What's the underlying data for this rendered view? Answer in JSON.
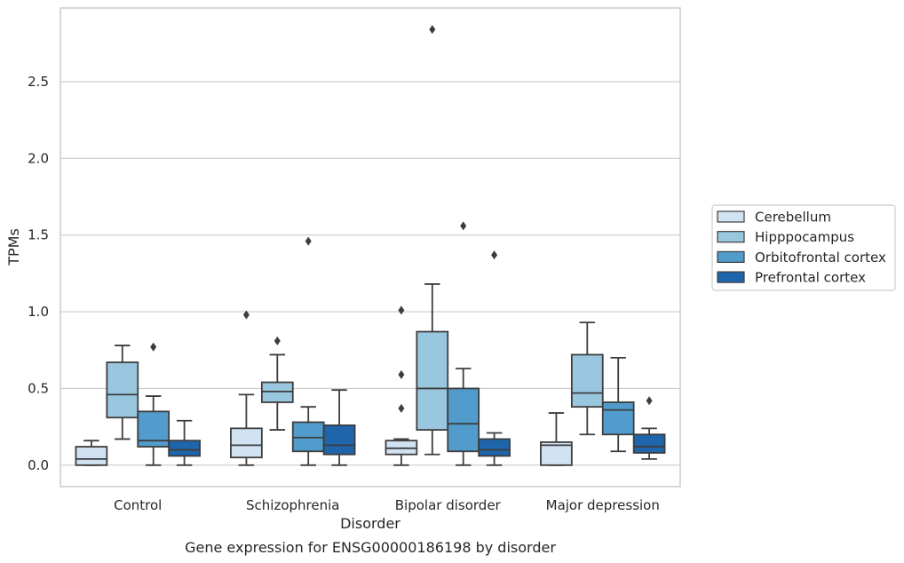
{
  "chart_data": {
    "type": "box",
    "title": "",
    "xlabel": "Disorder",
    "ylabel": "TPMs",
    "caption": "Gene expression for ENSG00000186198 by disorder",
    "ylim": [
      -0.14,
      2.98
    ],
    "yticks": [
      0.0,
      0.5,
      1.0,
      1.5,
      2.0,
      2.5
    ],
    "ytick_labels": [
      "0.0",
      "0.5",
      "1.0",
      "1.5",
      "2.0",
      "2.5"
    ],
    "grid": "horizontal",
    "legend_position": "right",
    "categories": [
      "Control",
      "Schizophrenia",
      "Bipolar disorder",
      "Major depression"
    ],
    "series": [
      {
        "name": "Cerebellum",
        "color": "#d1e2f2",
        "boxes": [
          {
            "q1": 0.0,
            "median": 0.04,
            "q3": 0.12,
            "whisker_low": 0.0,
            "whisker_high": 0.16,
            "outliers": []
          },
          {
            "q1": 0.05,
            "median": 0.13,
            "q3": 0.24,
            "whisker_low": 0.0,
            "whisker_high": 0.46,
            "outliers": [
              0.98
            ]
          },
          {
            "q1": 0.07,
            "median": 0.11,
            "q3": 0.16,
            "whisker_low": 0.0,
            "whisker_high": 0.17,
            "outliers": [
              0.37,
              0.59,
              1.01
            ]
          },
          {
            "q1": 0.0,
            "median": 0.13,
            "q3": 0.15,
            "whisker_low": 0.0,
            "whisker_high": 0.34,
            "outliers": []
          }
        ]
      },
      {
        "name": "Hipppocampus",
        "color": "#9ac7e0",
        "boxes": [
          {
            "q1": 0.31,
            "median": 0.46,
            "q3": 0.67,
            "whisker_low": 0.17,
            "whisker_high": 0.78,
            "outliers": []
          },
          {
            "q1": 0.41,
            "median": 0.48,
            "q3": 0.54,
            "whisker_low": 0.23,
            "whisker_high": 0.72,
            "outliers": [
              0.81
            ]
          },
          {
            "q1": 0.23,
            "median": 0.5,
            "q3": 0.87,
            "whisker_low": 0.07,
            "whisker_high": 1.18,
            "outliers": [
              2.84
            ]
          },
          {
            "q1": 0.38,
            "median": 0.47,
            "q3": 0.72,
            "whisker_low": 0.2,
            "whisker_high": 0.93,
            "outliers": []
          }
        ]
      },
      {
        "name": "Orbitofrontal cortex",
        "color": "#519ccc",
        "boxes": [
          {
            "q1": 0.12,
            "median": 0.16,
            "q3": 0.35,
            "whisker_low": 0.0,
            "whisker_high": 0.45,
            "outliers": [
              0.77
            ]
          },
          {
            "q1": 0.09,
            "median": 0.18,
            "q3": 0.28,
            "whisker_low": 0.0,
            "whisker_high": 0.38,
            "outliers": [
              1.46
            ]
          },
          {
            "q1": 0.09,
            "median": 0.27,
            "q3": 0.5,
            "whisker_low": 0.0,
            "whisker_high": 0.63,
            "outliers": [
              1.56
            ]
          },
          {
            "q1": 0.2,
            "median": 0.36,
            "q3": 0.41,
            "whisker_low": 0.09,
            "whisker_high": 0.7,
            "outliers": []
          }
        ]
      },
      {
        "name": "Prefrontal cortex",
        "color": "#1f65ab",
        "boxes": [
          {
            "q1": 0.06,
            "median": 0.1,
            "q3": 0.16,
            "whisker_low": 0.0,
            "whisker_high": 0.29,
            "outliers": []
          },
          {
            "q1": 0.07,
            "median": 0.13,
            "q3": 0.26,
            "whisker_low": 0.0,
            "whisker_high": 0.49,
            "outliers": []
          },
          {
            "q1": 0.06,
            "median": 0.1,
            "q3": 0.17,
            "whisker_low": 0.0,
            "whisker_high": 0.21,
            "outliers": [
              1.37
            ]
          },
          {
            "q1": 0.08,
            "median": 0.12,
            "q3": 0.2,
            "whisker_low": 0.04,
            "whisker_high": 0.24,
            "outliers": [
              0.42
            ]
          }
        ]
      }
    ]
  }
}
